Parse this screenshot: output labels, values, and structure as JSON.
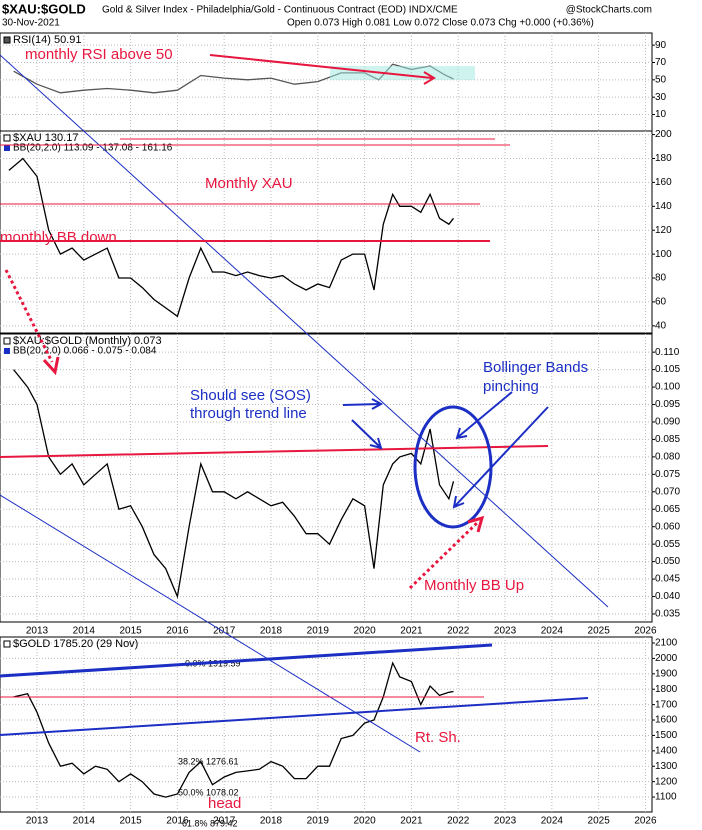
{
  "header": {
    "symbol": "$XAU:$GOLD",
    "description": "Gold & Silver Index - Philadelphia/Gold - Continuous Contract (EOD) INDX/CME",
    "watermark": "@StockCharts.com",
    "date": "30-Nov-2021",
    "quote": "Open 0.073 High 0.081 Low 0.072 Close 0.073 Chg +0.000 (+0.36%)"
  },
  "chart_data": [
    {
      "type": "line",
      "x_tick_labels": false,
      "x": [
        2012.5,
        2013.0,
        2013.5,
        2014.0,
        2014.5,
        2015.0,
        2015.5,
        2016.0,
        2016.5,
        2017.0,
        2017.5,
        2018.0,
        2018.5,
        2019.0,
        2019.5,
        2020.0,
        2020.3,
        2020.6,
        2021.0,
        2021.4,
        2021.7,
        2021.9
      ],
      "series": [
        {
          "name": "RSI(14) 50.91",
          "color": "#555555",
          "values": [
            60,
            45,
            35,
            38,
            40,
            38,
            35,
            38,
            55,
            52,
            50,
            52,
            45,
            48,
            58,
            58,
            50,
            68,
            62,
            66,
            56,
            51
          ]
        }
      ],
      "xlim": [
        2012.21,
        2026.14
      ],
      "xticks": [
        2013,
        2014,
        2015,
        2016,
        2017,
        2018,
        2019,
        2020,
        2021,
        2022,
        2023,
        2024,
        2025,
        2026
      ],
      "ylim": [
        -9,
        104
      ],
      "yticks": [
        10,
        30,
        50,
        70,
        90
      ],
      "grid": true,
      "annotations": [
        "monthly RSI above 50"
      ]
    },
    {
      "type": "line",
      "x_tick_labels": false,
      "x": [
        2012.4,
        2012.7,
        2013.0,
        2013.25,
        2013.5,
        2013.75,
        2014.0,
        2014.25,
        2014.5,
        2014.75,
        2015.0,
        2015.25,
        2015.5,
        2015.75,
        2016.0,
        2016.25,
        2016.5,
        2016.75,
        2017.0,
        2017.25,
        2017.5,
        2017.75,
        2018.0,
        2018.25,
        2018.5,
        2018.75,
        2019.0,
        2019.25,
        2019.5,
        2019.75,
        2020.0,
        2020.2,
        2020.4,
        2020.6,
        2020.75,
        2021.0,
        2021.2,
        2021.4,
        2021.6,
        2021.8,
        2021.9
      ],
      "series": [
        {
          "name": "$XAU 130.17",
          "color": "#000000",
          "values": [
            170,
            180,
            165,
            120,
            100,
            105,
            95,
            100,
            105,
            80,
            80,
            72,
            62,
            55,
            48,
            80,
            105,
            85,
            85,
            82,
            85,
            82,
            80,
            82,
            75,
            70,
            75,
            72,
            95,
            100,
            100,
            70,
            125,
            150,
            140,
            140,
            135,
            150,
            130,
            125,
            130
          ]
        }
      ],
      "bb_label": "BB(20,2.0) 113.09 - 137.08 - 161.16",
      "xlim": [
        2012.21,
        2026.14
      ],
      "xticks": [
        2013,
        2014,
        2015,
        2016,
        2017,
        2018,
        2019,
        2020,
        2021,
        2022,
        2023,
        2024,
        2025,
        2026
      ],
      "ylim": [
        34,
        203
      ],
      "yticks": [
        40,
        60,
        80,
        100,
        120,
        140,
        160,
        180,
        200
      ],
      "grid": true,
      "annotations": [
        "Monthly XAU",
        "monthly BB down"
      ]
    },
    {
      "type": "line",
      "x_tick_labels": true,
      "x": [
        2012.5,
        2012.8,
        2013.0,
        2013.25,
        2013.5,
        2013.75,
        2014.0,
        2014.25,
        2014.5,
        2014.75,
        2015.0,
        2015.25,
        2015.5,
        2015.75,
        2016.0,
        2016.25,
        2016.5,
        2016.75,
        2017.0,
        2017.25,
        2017.5,
        2017.75,
        2018.0,
        2018.25,
        2018.5,
        2018.75,
        2019.0,
        2019.25,
        2019.5,
        2019.75,
        2020.0,
        2020.2,
        2020.4,
        2020.6,
        2020.75,
        2021.0,
        2021.2,
        2021.4,
        2021.6,
        2021.8,
        2021.9
      ],
      "series": [
        {
          "name": "$XAU:$GOLD (Monthly) 0.073",
          "color": "#000000",
          "values": [
            0.105,
            0.1,
            0.095,
            0.08,
            0.075,
            0.078,
            0.072,
            0.075,
            0.078,
            0.065,
            0.066,
            0.06,
            0.052,
            0.048,
            0.04,
            0.06,
            0.078,
            0.07,
            0.07,
            0.068,
            0.07,
            0.068,
            0.066,
            0.067,
            0.063,
            0.058,
            0.058,
            0.055,
            0.062,
            0.068,
            0.066,
            0.048,
            0.072,
            0.078,
            0.08,
            0.081,
            0.078,
            0.088,
            0.072,
            0.068,
            0.073
          ]
        }
      ],
      "bb_label": "BB(20,2.0) 0.066 - 0.075 - 0.084",
      "xlim": [
        2012.21,
        2026.14
      ],
      "xticks": [
        2013,
        2014,
        2015,
        2016,
        2017,
        2018,
        2019,
        2020,
        2021,
        2022,
        2023,
        2024,
        2025,
        2026
      ],
      "ylim": [
        0.0327,
        0.1152
      ],
      "yticks": [
        0.035,
        {
          "value": 0.04,
          "label": "0.040"
        },
        0.045,
        {
          "value": 0.05,
          "label": "0.050"
        },
        0.055,
        {
          "value": 0.06,
          "label": "0.060"
        },
        0.065,
        {
          "value": 0.07,
          "label": "0.070"
        },
        0.075,
        {
          "value": 0.08,
          "label": "0.080"
        },
        0.085,
        {
          "value": 0.09,
          "label": "0.090"
        },
        0.095,
        {
          "value": 0.1,
          "label": "0.100"
        },
        0.105,
        {
          "value": 0.11,
          "label": "0.110"
        }
      ],
      "grid": true,
      "annotations": [
        "Should see (SOS)",
        "through trend line",
        "Bollinger Bands",
        "pinching",
        "Monthly BB Up"
      ]
    },
    {
      "type": "line",
      "x_tick_labels": true,
      "x": [
        2012.5,
        2012.8,
        2013.0,
        2013.25,
        2013.5,
        2013.75,
        2014.0,
        2014.25,
        2014.5,
        2014.75,
        2015.0,
        2015.25,
        2015.5,
        2015.75,
        2016.0,
        2016.25,
        2016.5,
        2016.75,
        2017.0,
        2017.25,
        2017.5,
        2017.75,
        2018.0,
        2018.25,
        2018.5,
        2018.75,
        2019.0,
        2019.25,
        2019.5,
        2019.75,
        2020.0,
        2020.2,
        2020.4,
        2020.6,
        2020.75,
        2021.0,
        2021.2,
        2021.4,
        2021.6,
        2021.8,
        2021.9
      ],
      "series": [
        {
          "name": "$GOLD 1785.20 (29 Nov)",
          "color": "#000000",
          "values": [
            1750,
            1770,
            1650,
            1450,
            1300,
            1320,
            1250,
            1300,
            1280,
            1200,
            1250,
            1200,
            1120,
            1100,
            1120,
            1260,
            1330,
            1180,
            1230,
            1260,
            1270,
            1280,
            1330,
            1300,
            1220,
            1220,
            1300,
            1300,
            1480,
            1500,
            1580,
            1600,
            1750,
            1970,
            1880,
            1850,
            1700,
            1820,
            1760,
            1780,
            1785
          ]
        }
      ],
      "fib_labels": [
        "0.0% 1919.59",
        "38.2% 1276.61",
        "50.0% 1078.02",
        "61.8% 879.42"
      ],
      "xlim": [
        2012.21,
        2026.14
      ],
      "xticks": [
        2013,
        2014,
        2015,
        2016,
        2017,
        2018,
        2019,
        2020,
        2021,
        2022,
        2023,
        2024,
        2025,
        2026
      ],
      "ylim": [
        1003,
        2139
      ],
      "yticks": [
        1100,
        1200,
        1300,
        1400,
        1500,
        1600,
        1700,
        1800,
        1900,
        2000,
        2100
      ],
      "grid": true,
      "annotations": [
        "Rt. Sh.",
        "head"
      ]
    }
  ]
}
